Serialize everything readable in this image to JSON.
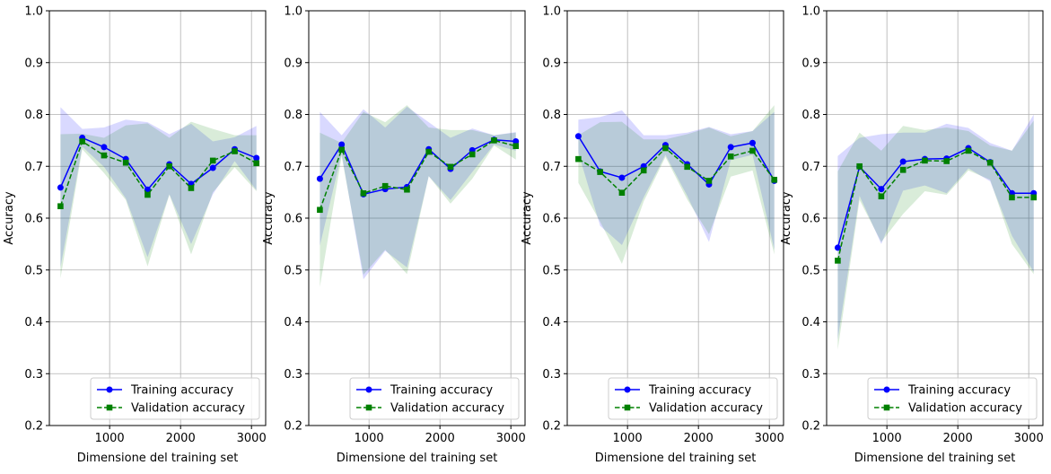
{
  "colors": {
    "training": "#0000ff",
    "validation": "#008000",
    "grid": "#b0b0b0"
  },
  "chart_data": [
    {
      "type": "line",
      "xlabel": "Dimensione del training set",
      "ylabel": "Accuracy",
      "ylim": [
        0.2,
        1.0
      ],
      "xlim": [
        150,
        3200
      ],
      "yticks": [
        "0.2",
        "0.3",
        "0.4",
        "0.5",
        "0.6",
        "0.7",
        "0.8",
        "0.9",
        "1.0"
      ],
      "xticks": [
        "1000",
        "2000",
        "3000"
      ],
      "grid": true,
      "legend": "lower-right",
      "x": [
        307,
        614,
        921,
        1228,
        1535,
        1842,
        2149,
        2456,
        2763,
        3070
      ],
      "series": [
        {
          "name": "Training accuracy",
          "style": "solid",
          "marker": "circle",
          "values": [
            0.659,
            0.755,
            0.737,
            0.714,
            0.655,
            0.704,
            0.666,
            0.697,
            0.733,
            0.716
          ],
          "band_upper": [
            0.814,
            0.772,
            0.775,
            0.79,
            0.785,
            0.762,
            0.782,
            0.748,
            0.756,
            0.778
          ],
          "band_lower": [
            0.505,
            0.738,
            0.699,
            0.638,
            0.525,
            0.646,
            0.55,
            0.646,
            0.71,
            0.654
          ]
        },
        {
          "name": "Validation accuracy",
          "style": "dashed",
          "marker": "square",
          "values": [
            0.623,
            0.748,
            0.721,
            0.707,
            0.645,
            0.7,
            0.658,
            0.711,
            0.729,
            0.706
          ],
          "band_upper": [
            0.762,
            0.763,
            0.755,
            0.779,
            0.783,
            0.755,
            0.786,
            0.772,
            0.76,
            0.76
          ],
          "band_lower": [
            0.484,
            0.733,
            0.687,
            0.635,
            0.507,
            0.645,
            0.53,
            0.65,
            0.698,
            0.652
          ]
        }
      ]
    },
    {
      "type": "line",
      "xlabel": "Dimensione del training set",
      "ylabel": "Accuracy",
      "ylim": [
        0.2,
        1.0
      ],
      "xlim": [
        150,
        3200
      ],
      "yticks": [
        "0.2",
        "0.3",
        "0.4",
        "0.5",
        "0.6",
        "0.7",
        "0.8",
        "0.9",
        "1.0"
      ],
      "xticks": [
        "1000",
        "2000",
        "3000"
      ],
      "grid": true,
      "legend": "lower-right",
      "x": [
        307,
        614,
        921,
        1228,
        1535,
        1842,
        2149,
        2456,
        2763,
        3070
      ],
      "series": [
        {
          "name": "Training accuracy",
          "style": "solid",
          "marker": "circle",
          "values": [
            0.676,
            0.742,
            0.646,
            0.656,
            0.66,
            0.733,
            0.695,
            0.731,
            0.751,
            0.748
          ],
          "band_upper": [
            0.805,
            0.76,
            0.81,
            0.775,
            0.815,
            0.785,
            0.755,
            0.773,
            0.76,
            0.766
          ],
          "band_lower": [
            0.547,
            0.724,
            0.482,
            0.537,
            0.505,
            0.681,
            0.635,
            0.689,
            0.742,
            0.73
          ]
        },
        {
          "name": "Validation accuracy",
          "style": "dashed",
          "marker": "square",
          "values": [
            0.616,
            0.732,
            0.648,
            0.662,
            0.655,
            0.728,
            0.699,
            0.723,
            0.75,
            0.739
          ],
          "band_upper": [
            0.765,
            0.745,
            0.805,
            0.785,
            0.818,
            0.775,
            0.77,
            0.77,
            0.76,
            0.765
          ],
          "band_lower": [
            0.467,
            0.719,
            0.491,
            0.539,
            0.492,
            0.681,
            0.628,
            0.676,
            0.74,
            0.713
          ]
        }
      ]
    },
    {
      "type": "line",
      "xlabel": "Dimensione del training set",
      "ylabel": "Accuracy",
      "ylim": [
        0.2,
        1.0
      ],
      "xlim": [
        150,
        3200
      ],
      "yticks": [
        "0.2",
        "0.3",
        "0.4",
        "0.5",
        "0.6",
        "0.7",
        "0.8",
        "0.9",
        "1.0"
      ],
      "xticks": [
        "1000",
        "2000",
        "3000"
      ],
      "grid": true,
      "legend": "lower-right",
      "x": [
        307,
        614,
        921,
        1228,
        1535,
        1842,
        2149,
        2456,
        2763,
        3070
      ],
      "series": [
        {
          "name": "Training accuracy",
          "style": "solid",
          "marker": "circle",
          "values": [
            0.758,
            0.69,
            0.678,
            0.7,
            0.741,
            0.704,
            0.665,
            0.737,
            0.745,
            0.672
          ],
          "band_upper": [
            0.79,
            0.795,
            0.808,
            0.76,
            0.76,
            0.765,
            0.776,
            0.762,
            0.768,
            0.805
          ],
          "band_lower": [
            0.726,
            0.585,
            0.548,
            0.64,
            0.722,
            0.643,
            0.554,
            0.712,
            0.722,
            0.539
          ]
        },
        {
          "name": "Validation accuracy",
          "style": "dashed",
          "marker": "square",
          "values": [
            0.714,
            0.689,
            0.649,
            0.692,
            0.735,
            0.699,
            0.672,
            0.719,
            0.73,
            0.674
          ],
          "band_upper": [
            0.76,
            0.785,
            0.786,
            0.752,
            0.752,
            0.762,
            0.775,
            0.758,
            0.768,
            0.818
          ],
          "band_lower": [
            0.668,
            0.593,
            0.512,
            0.632,
            0.718,
            0.636,
            0.569,
            0.68,
            0.692,
            0.53
          ]
        }
      ]
    },
    {
      "type": "line",
      "xlabel": "Dimensione del training set",
      "ylabel": "Accuracy",
      "ylim": [
        0.2,
        1.0
      ],
      "xlim": [
        150,
        3200
      ],
      "yticks": [
        "0.2",
        "0.3",
        "0.4",
        "0.5",
        "0.6",
        "0.7",
        "0.8",
        "0.9",
        "1.0"
      ],
      "xticks": [
        "1000",
        "2000",
        "3000"
      ],
      "grid": true,
      "legend": "lower-right",
      "x": [
        307,
        614,
        921,
        1228,
        1535,
        1842,
        2149,
        2456,
        2763,
        3070
      ],
      "series": [
        {
          "name": "Training accuracy",
          "style": "solid",
          "marker": "circle",
          "values": [
            0.543,
            0.699,
            0.656,
            0.709,
            0.714,
            0.715,
            0.735,
            0.708,
            0.648,
            0.648
          ],
          "band_upper": [
            0.72,
            0.755,
            0.762,
            0.765,
            0.765,
            0.782,
            0.774,
            0.745,
            0.73,
            0.8
          ],
          "band_lower": [
            0.366,
            0.643,
            0.55,
            0.653,
            0.663,
            0.648,
            0.696,
            0.671,
            0.566,
            0.496
          ]
        },
        {
          "name": "Validation accuracy",
          "style": "dashed",
          "marker": "square",
          "values": [
            0.518,
            0.7,
            0.642,
            0.693,
            0.711,
            0.71,
            0.73,
            0.707,
            0.64,
            0.64
          ],
          "band_upper": [
            0.69,
            0.765,
            0.73,
            0.778,
            0.77,
            0.775,
            0.768,
            0.74,
            0.73,
            0.788
          ],
          "band_lower": [
            0.346,
            0.635,
            0.554,
            0.608,
            0.652,
            0.645,
            0.692,
            0.674,
            0.55,
            0.492
          ]
        }
      ]
    }
  ]
}
